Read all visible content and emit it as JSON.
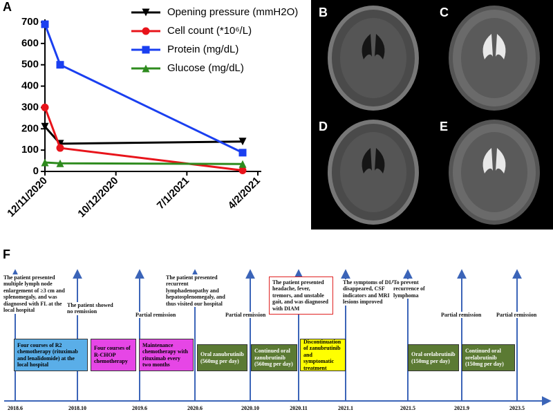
{
  "chart_data": {
    "type": "line",
    "panel_label": "A",
    "x": [
      "12/11/2020",
      "18/11/2020",
      "29/1/2021"
    ],
    "series": [
      {
        "name": "Opening pressure (mmH2O)",
        "color": "#000000",
        "marker": "triangle-down",
        "values": [
          210,
          130,
          140
        ]
      },
      {
        "name": "Cell count (*10⁶/L)",
        "color": "#e8141b",
        "marker": "circle",
        "values": [
          300,
          110,
          5
        ]
      },
      {
        "name": "Protein (mg/dL)",
        "color": "#1a3ff0",
        "marker": "square",
        "values": [
          690,
          500,
          88
        ]
      },
      {
        "name": "Glucose (mg/dL)",
        "color": "#2e8b1e",
        "marker": "triangle-up",
        "values": [
          42,
          38,
          35
        ]
      }
    ],
    "xlim": [
      "12/11/2020",
      "4/2/2021"
    ],
    "xticks": [
      "12/11/2020",
      "10/12/2020",
      "7/1/2021",
      "4/2/2021"
    ],
    "ylim": [
      0,
      700
    ],
    "yticks": [
      0,
      100,
      200,
      300,
      400,
      500,
      600,
      700
    ],
    "legend": "top-right"
  },
  "images": [
    {
      "label": "B"
    },
    {
      "label": "C"
    },
    {
      "label": "D"
    },
    {
      "label": "E"
    }
  ],
  "timeline": {
    "panel_label": "F",
    "dates": [
      "2018.6",
      "2018.10",
      "2019.6",
      "2020.6",
      "2020.10",
      "2020.11",
      "2021.1",
      "2021.5",
      "2021.9",
      "2023.5"
    ],
    "events": [
      "The patient presented multiple lymph node enlargement of ≥3 cm and splenomegaly, and was diagnosed with FL at the local hospital",
      "The patient showed no remission",
      "Partial remission",
      "The patient presented recurrent lymphadenopathy and hepatosplenomegaly, and thus visited our hospital",
      "Partial remission",
      "The patient presented headache, fever, tremors, and unstable gait, and was diagnosed with DIAM",
      "The symptoms of DIAM disappeared, CSF indicators and MRI lesions improved",
      "To prevent recurrence of lymphoma",
      "Partial remission",
      "Partial remission"
    ],
    "treatments": [
      "Four courses of R2 chemotherapy (rituximab and lenalidomide) at the local hospital",
      "Four courses of R-CHOP chemotherapy",
      "Maintenance chemotherapy with rituximab every two months",
      "Oral zanubrutinib (560mg per day)",
      "Continued oral zanubrutinib (560mg per day)",
      "Discontinuation of zanubrutinib and symptomatic treatment",
      "Oral orelabrutinib (150mg per day)",
      "Continued oral orelabrutinib (150mg per day)"
    ]
  }
}
